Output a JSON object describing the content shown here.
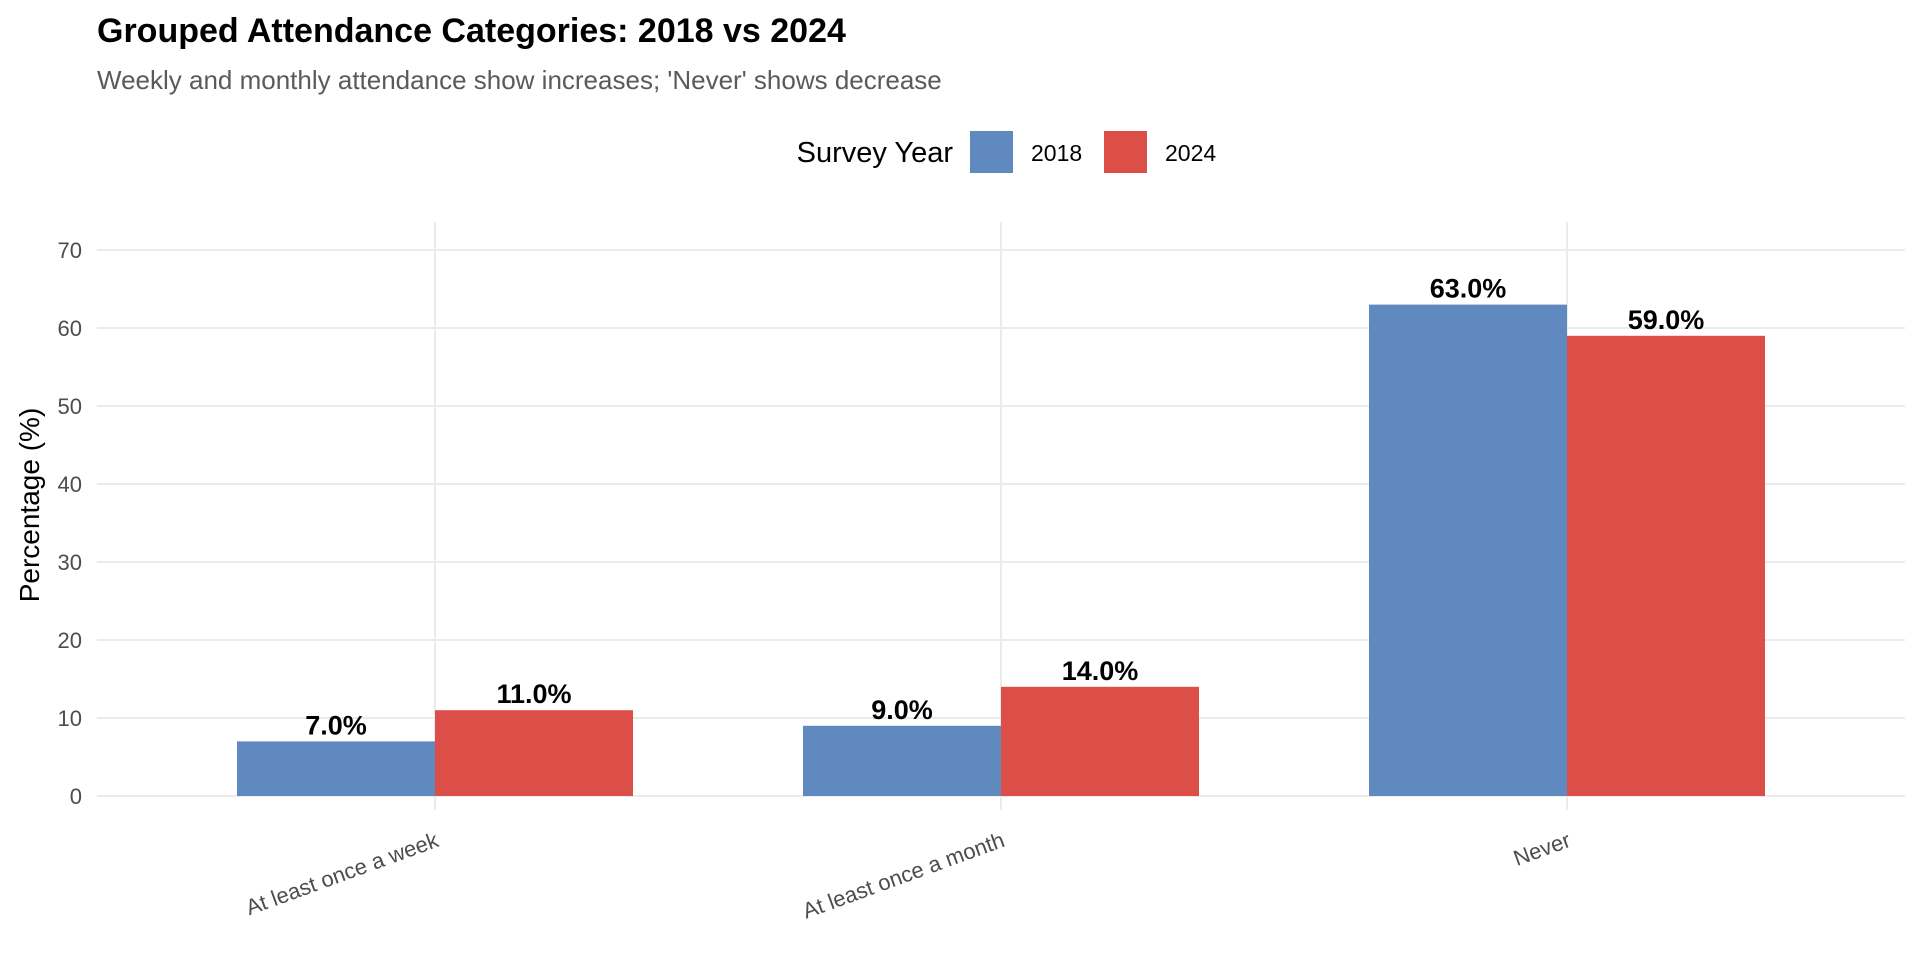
{
  "chart_data": {
    "type": "bar",
    "title": "Grouped Attendance Categories: 2018 vs 2024",
    "subtitle": "Weekly and monthly attendance show increases; 'Never' shows decrease",
    "xlabel": "",
    "ylabel": "Percentage (%)",
    "categories": [
      "At least once a week",
      "At least once a month",
      "Never"
    ],
    "series": [
      {
        "name": "2018",
        "values": [
          7.0,
          9.0,
          63.0
        ],
        "labels": [
          "7.0%",
          "9.0%",
          "63.0%"
        ],
        "color": "#6089BF"
      },
      {
        "name": "2024",
        "values": [
          11.0,
          14.0,
          59.0
        ],
        "labels": [
          "11.0%",
          "14.0%",
          "59.0%"
        ],
        "color": "#DC4E48"
      }
    ],
    "ylim": [
      0,
      70
    ],
    "yticks": [
      0,
      10,
      20,
      30,
      40,
      50,
      60,
      70
    ],
    "legend": {
      "title": "Survey Year",
      "position": "top"
    },
    "grid": true
  }
}
